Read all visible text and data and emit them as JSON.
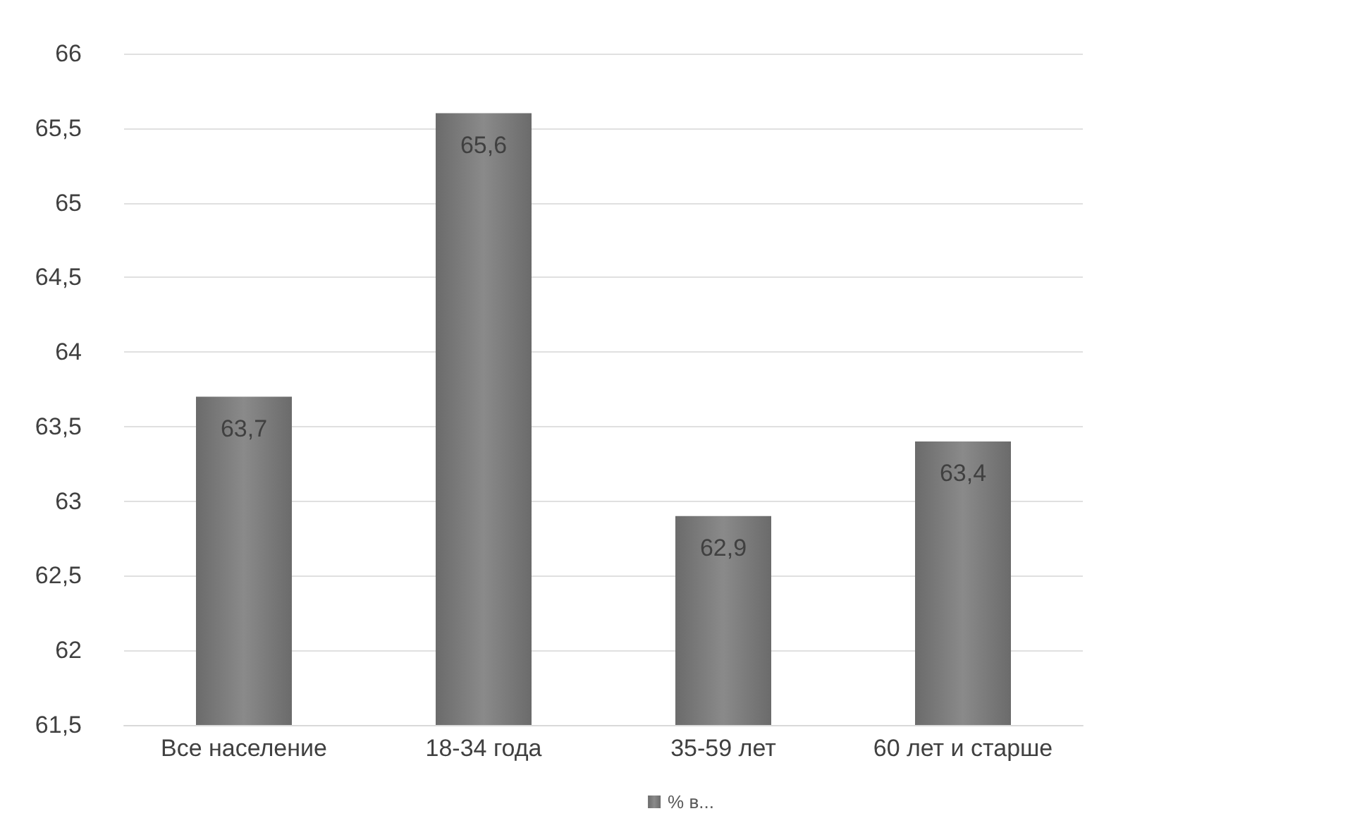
{
  "chart_data": {
    "type": "bar",
    "categories": [
      "Все население",
      "18-34 года",
      "35-59 лет",
      "60 лет и старше"
    ],
    "series": [
      {
        "name": "% в...",
        "color": "#6b6b6b",
        "values": [
          63.7,
          65.6,
          62.9,
          63.4
        ],
        "value_labels": [
          "63,7",
          "65,6",
          "62,9",
          "63,4"
        ]
      }
    ],
    "ylim": [
      61.5,
      66
    ],
    "yticks": [
      {
        "value": 61.5,
        "label": "61,5"
      },
      62,
      {
        "value": 62.5,
        "label": "62,5"
      },
      63,
      {
        "value": 63.5,
        "label": "63,5"
      },
      64,
      {
        "value": 64.5,
        "label": "64,5"
      },
      65,
      {
        "value": 65.5,
        "label": "65,5"
      },
      66
    ],
    "grid": "y",
    "legend": "bottom"
  }
}
